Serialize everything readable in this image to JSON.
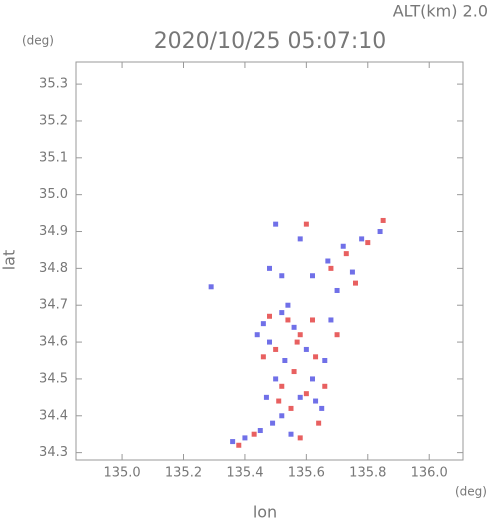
{
  "chart_data": {
    "type": "scatter",
    "title": "2020/10/25 05:07:10",
    "subtitle": "ALT(km) 2.0",
    "x_label": "lon",
    "y_label": "lat",
    "x_unit": "(deg)",
    "y_unit": "(deg)",
    "xlim": [
      134.85,
      136.11
    ],
    "ylim": [
      34.28,
      35.36
    ],
    "xticks": [
      {
        "value": 135.0,
        "label": "135.0"
      },
      135.2,
      135.4,
      135.6,
      135.8,
      {
        "value": 136.0,
        "label": "136.0"
      }
    ],
    "yticks": [
      34.3,
      34.4,
      34.5,
      34.6,
      34.7,
      34.8,
      34.9,
      {
        "value": 35.0,
        "label": "35.0"
      },
      35.1,
      35.2,
      35.3
    ],
    "series": [
      {
        "color": "#7070e8",
        "x": [
          135.36,
          135.4,
          135.45,
          135.49,
          135.52,
          135.47,
          135.5,
          135.53,
          135.48,
          135.46,
          135.52,
          135.56,
          135.6,
          135.62,
          135.58,
          135.65,
          135.66,
          135.68,
          135.44,
          135.54,
          135.5,
          135.52,
          135.48,
          135.62,
          135.67,
          135.72,
          135.78,
          135.84,
          135.75,
          135.7,
          135.29,
          135.58,
          135.63,
          135.55
        ],
        "y": [
          34.33,
          34.34,
          34.36,
          34.38,
          34.4,
          34.45,
          34.5,
          34.55,
          34.6,
          34.65,
          34.68,
          34.64,
          34.58,
          34.5,
          34.45,
          34.42,
          34.55,
          34.66,
          34.62,
          34.7,
          34.92,
          34.78,
          34.8,
          34.78,
          34.82,
          34.86,
          34.88,
          34.9,
          34.79,
          34.74,
          34.75,
          34.88,
          34.44,
          34.35
        ]
      },
      {
        "color": "#e86060",
        "x": [
          135.38,
          135.43,
          135.58,
          135.55,
          135.6,
          135.52,
          135.56,
          135.63,
          135.5,
          135.58,
          135.62,
          135.48,
          135.54,
          135.66,
          135.64,
          135.7,
          135.6,
          135.73,
          135.8,
          135.76,
          135.68,
          135.85,
          135.57,
          135.51,
          135.46
        ],
        "y": [
          34.32,
          34.35,
          34.34,
          34.42,
          34.46,
          34.48,
          34.52,
          34.56,
          34.58,
          34.62,
          34.66,
          34.67,
          34.66,
          34.48,
          34.38,
          34.62,
          34.92,
          34.84,
          34.87,
          34.76,
          34.8,
          34.93,
          34.6,
          34.44,
          34.56
        ]
      }
    ]
  }
}
